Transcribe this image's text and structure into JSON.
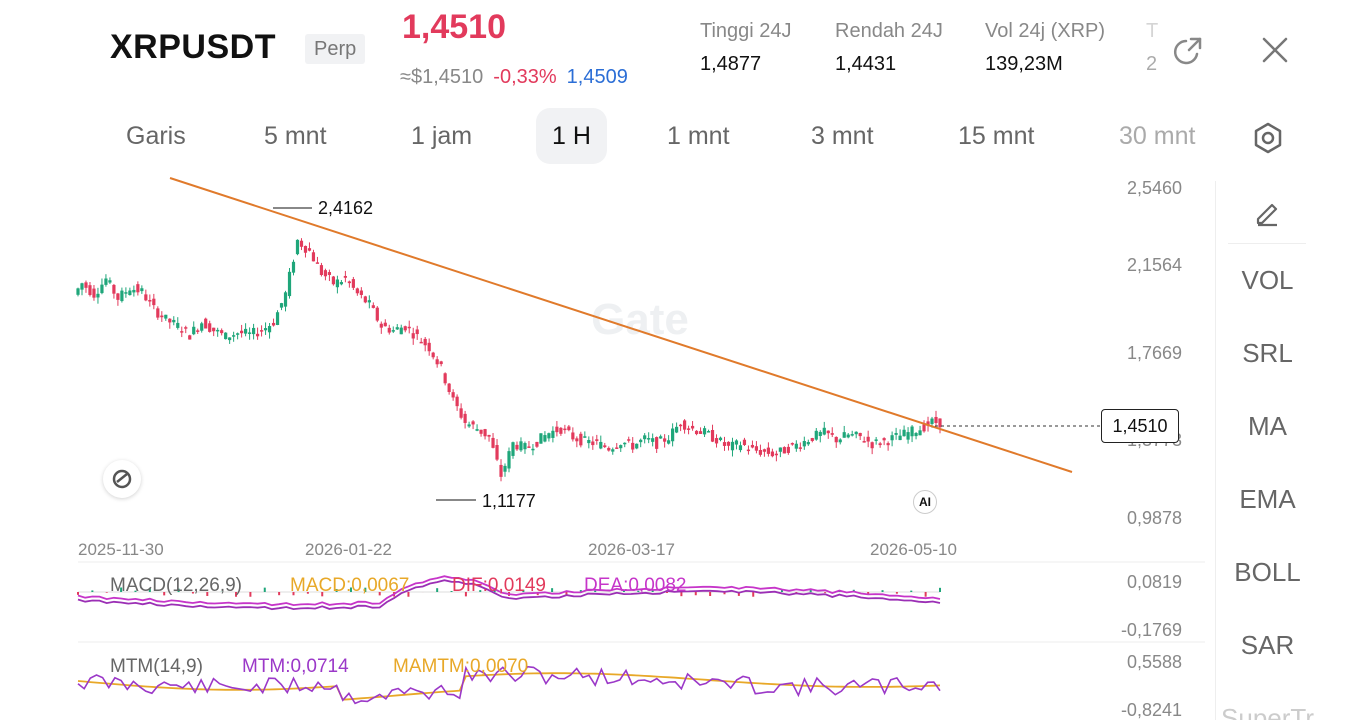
{
  "header": {
    "symbol": "XRPUSDT",
    "contract_type": "Perp",
    "last_price": "1,4510",
    "usd_price": "≈$1,4510",
    "change_pct": "-0,33%",
    "mark_price": "1,4509",
    "stats": [
      {
        "label": "Tinggi 24J",
        "value": "1,4877"
      },
      {
        "label": "Rendah 24J",
        "value": "1,4431"
      },
      {
        "label": "Vol 24j (XRP)",
        "value": "139,23M"
      },
      {
        "label": "T",
        "value": "2"
      }
    ]
  },
  "tabs": [
    {
      "label": "Garis",
      "active": false
    },
    {
      "label": "5 mnt",
      "active": false
    },
    {
      "label": "1 jam",
      "active": false
    },
    {
      "label": "1 H",
      "active": true
    },
    {
      "label": "1 mnt",
      "active": false
    },
    {
      "label": "3 mnt",
      "active": false
    },
    {
      "label": "15 mnt",
      "active": false
    },
    {
      "label": "30 mnt",
      "active": false
    }
  ],
  "sidebar": {
    "items": [
      "VOL",
      "SRL",
      "MA",
      "EMA",
      "BOLL",
      "SAR",
      "SuperTr"
    ]
  },
  "colors": {
    "up": "#1fa67a",
    "down": "#e23a5c",
    "trendline": "#e07a2b",
    "macd_line": "#c635c9",
    "dea_line": "#9b2fb5",
    "mtm_line": "#9b38c8",
    "mamtm_line": "#e8a828",
    "accent_red": "#e23a5c",
    "accent_blue": "#2b6ed6"
  },
  "chart_data": {
    "type": "candlestick",
    "watermark": "Gate",
    "price_axis": [
      "2,5460",
      "2,1564",
      "1,7669",
      "1,3773",
      "0,9878"
    ],
    "date_axis": [
      "2025-11-30",
      "2026-01-22",
      "2026-03-17",
      "2026-05-10"
    ],
    "current_price": "1,4510",
    "high_marker": "2,4162",
    "low_marker": "1,1177",
    "series_close": [
      2.02,
      2.1,
      2.05,
      2.12,
      2.03,
      2.08,
      2.06,
      1.98,
      1.93,
      1.9,
      1.86,
      1.92,
      1.88,
      1.85,
      1.87,
      1.86,
      1.88,
      1.92,
      2.05,
      2.3,
      2.25,
      2.15,
      2.1,
      2.12,
      2.05,
      2.0,
      1.9,
      1.88,
      1.9,
      1.85,
      1.8,
      1.7,
      1.55,
      1.45,
      1.42,
      1.38,
      1.2,
      1.35,
      1.33,
      1.36,
      1.4,
      1.42,
      1.38,
      1.36,
      1.35,
      1.33,
      1.36,
      1.34,
      1.37,
      1.35,
      1.38,
      1.45,
      1.42,
      1.4,
      1.37,
      1.33,
      1.35,
      1.32,
      1.31,
      1.3,
      1.33,
      1.35,
      1.38,
      1.4,
      1.37,
      1.39,
      1.38,
      1.35,
      1.36,
      1.38,
      1.4,
      1.42,
      1.45
    ],
    "trendline": {
      "from": [
        0,
        2.63
      ],
      "to": [
        1,
        1.31
      ]
    },
    "macd": {
      "label": "MACD(12,26,9)",
      "macd": "MACD:0,0067",
      "dif": "DIF:0,0149",
      "dea": "DEA:0,0082",
      "axis": [
        "0,0819",
        "-0,1769"
      ]
    },
    "mtm": {
      "label": "MTM(14,9)",
      "mtm": "MTM:0,0714",
      "mamtm": "MAMTM:0,0070",
      "axis": [
        "0,5588",
        "-0,8241"
      ]
    }
  }
}
